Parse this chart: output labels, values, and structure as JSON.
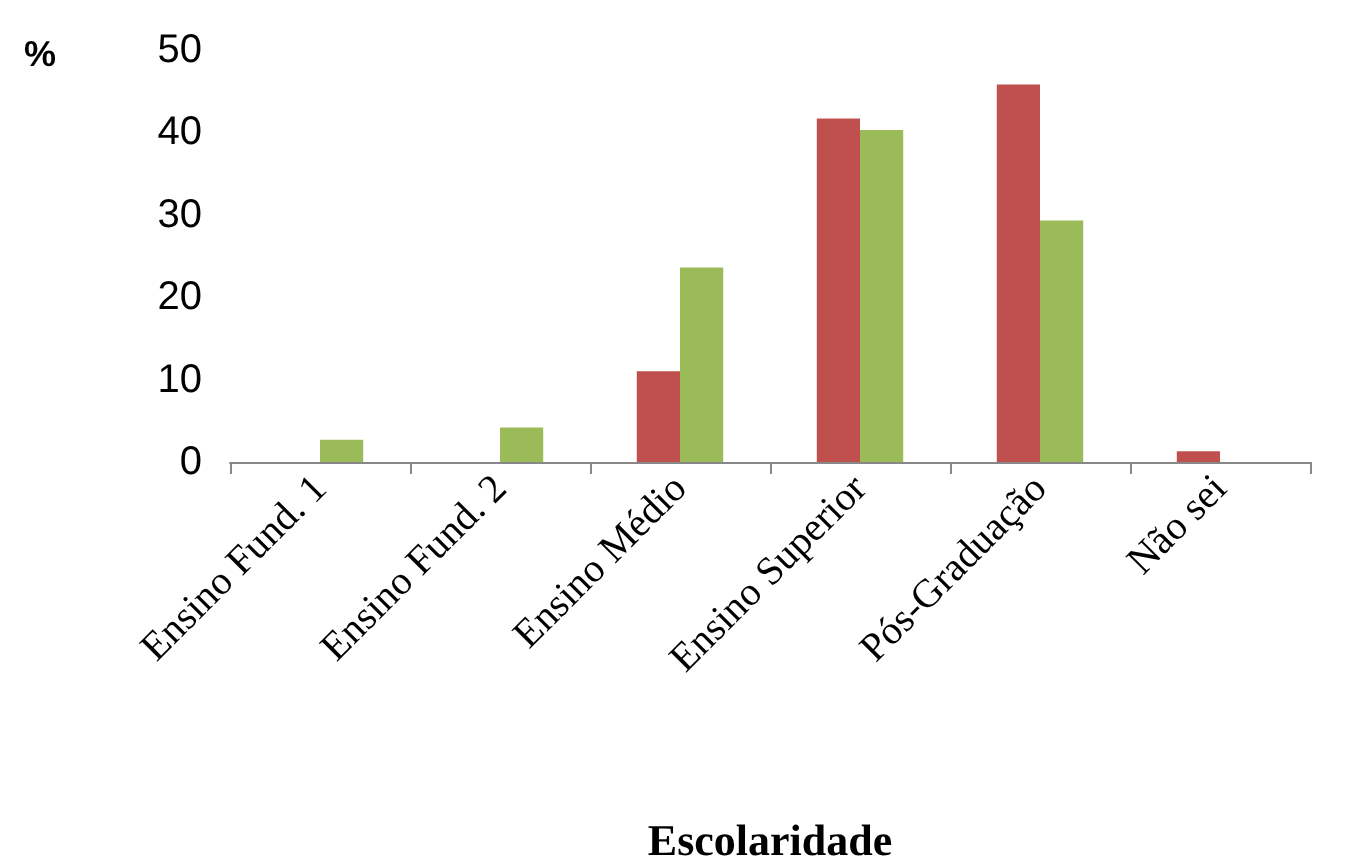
{
  "chart_data": {
    "type": "bar",
    "ylabel": "%",
    "xlabel": "Escolaridade",
    "categories": [
      "Ensino Fund. 1",
      "Ensino Fund. 2",
      "Ensino Médio",
      "Ensino Superior",
      "Pós-Graduação",
      "Não sei"
    ],
    "series": [
      {
        "color": "#c0504d",
        "values": [
          0,
          0,
          11,
          41.7,
          45.8,
          1.3
        ]
      },
      {
        "color": "#9bbb59",
        "values": [
          2.7,
          4.2,
          23.6,
          40.3,
          29.3,
          0
        ]
      }
    ],
    "ylim": [
      0,
      50
    ],
    "yticks": [
      0,
      10,
      20,
      30,
      40,
      50
    ],
    "grid": false
  }
}
